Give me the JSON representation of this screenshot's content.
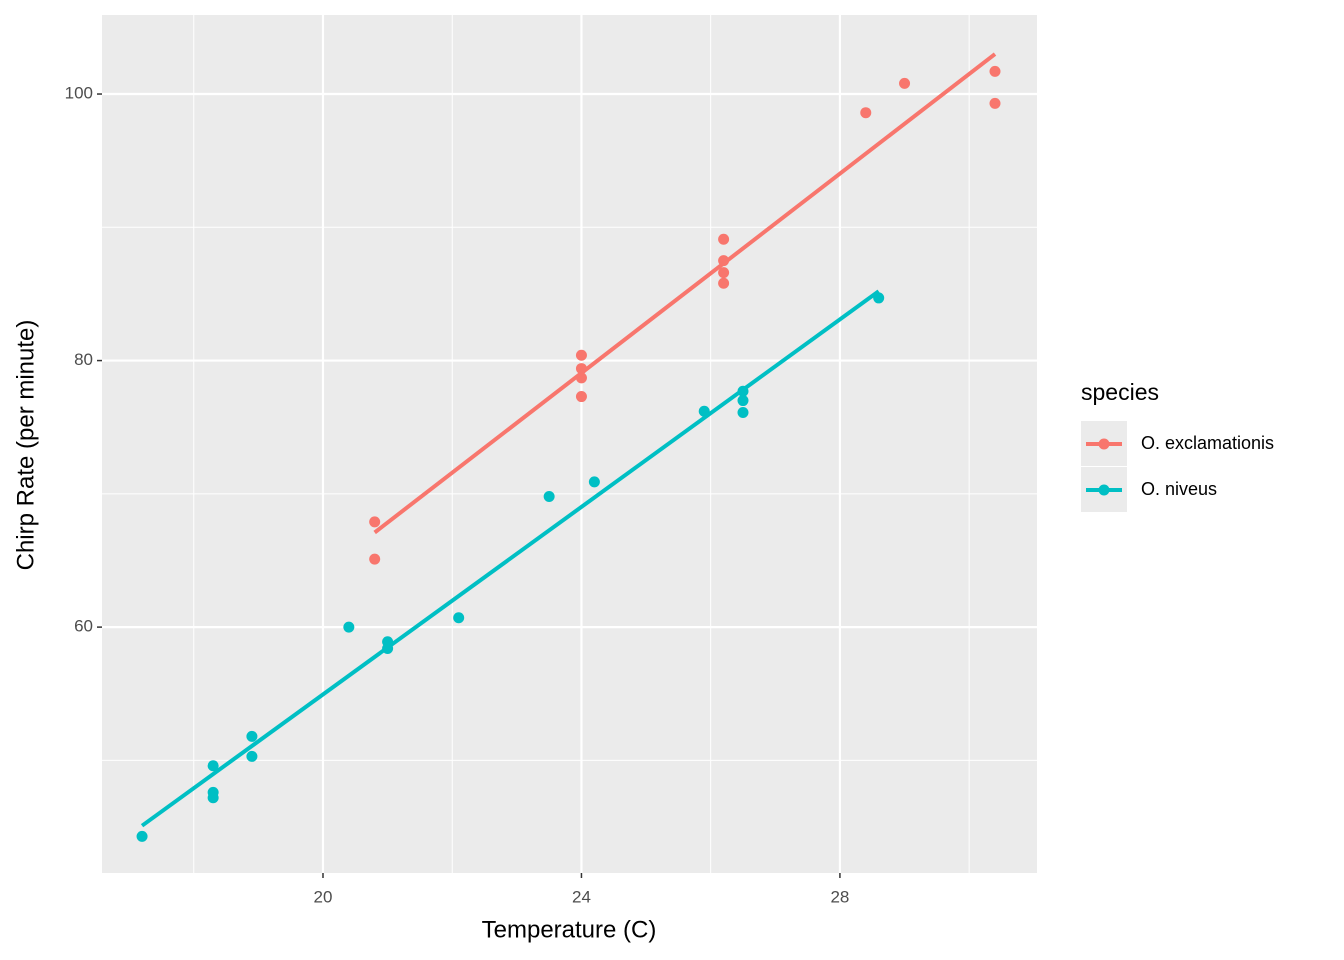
{
  "chart_data": {
    "type": "scatter",
    "x_label": "Temperature (C)",
    "y_label": "Chirp Rate (per minute)",
    "legend_title": "species",
    "legend_position": "right",
    "grid": true,
    "xlim": [
      16.58,
      31.05
    ],
    "ylim": [
      41.55,
      105.93
    ],
    "xticks": [
      20,
      24,
      28
    ],
    "yticks": [
      60,
      80,
      100
    ],
    "x_minor_grid": [
      18,
      22,
      26,
      30
    ],
    "y_minor_grid": [
      50,
      70,
      90
    ],
    "series": [
      {
        "name": "O. exclamationis",
        "color": "#f8766d",
        "x": [
          20.8,
          20.8,
          24.0,
          24.0,
          24.0,
          24.0,
          26.2,
          26.2,
          26.2,
          26.2,
          28.4,
          29.0,
          30.4,
          30.4
        ],
        "y": [
          67.9,
          65.1,
          80.4,
          79.4,
          78.7,
          77.3,
          89.1,
          87.5,
          86.6,
          85.8,
          98.6,
          100.8,
          101.7,
          99.3
        ],
        "fit": {
          "x": [
            20.8,
            30.4
          ],
          "y": [
            67.1,
            103.0
          ]
        }
      },
      {
        "name": "O. niveus",
        "color": "#00bfc4",
        "x": [
          17.2,
          18.3,
          18.3,
          18.3,
          18.9,
          18.9,
          20.4,
          21.0,
          21.0,
          22.1,
          23.5,
          24.2,
          25.9,
          26.5,
          26.5,
          26.5,
          28.6
        ],
        "y": [
          44.3,
          49.6,
          47.6,
          47.2,
          51.8,
          50.3,
          60.0,
          58.9,
          58.4,
          60.7,
          69.8,
          70.9,
          76.2,
          77.7,
          77.0,
          76.1,
          84.7
        ],
        "fit": {
          "x": [
            17.2,
            28.6
          ],
          "y": [
            45.1,
            85.2
          ]
        }
      }
    ]
  }
}
